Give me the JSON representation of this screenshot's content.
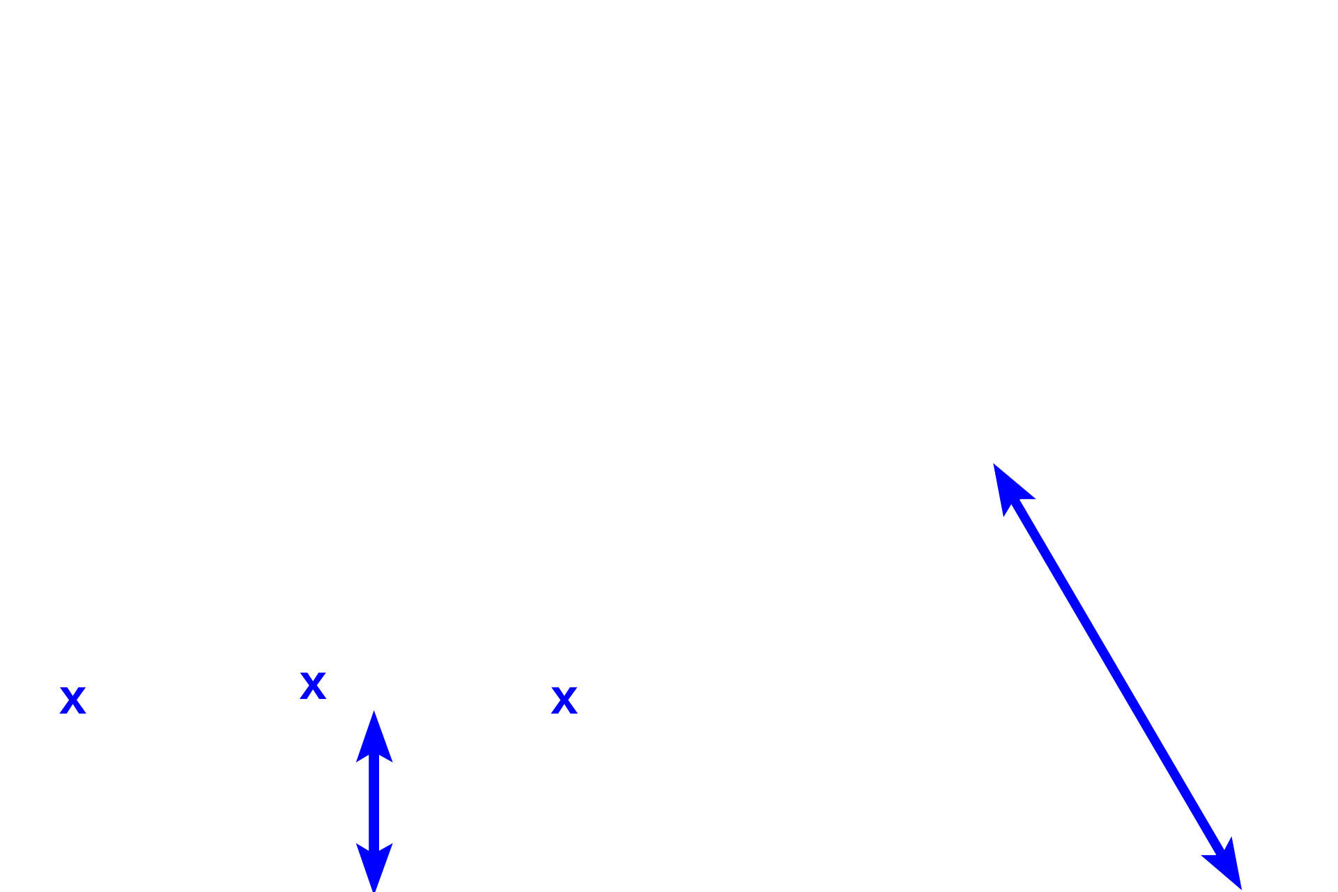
{
  "colors": {
    "ink": "#0000ff",
    "background": "#ffffff"
  },
  "labels": [
    {
      "text": "x"
    },
    {
      "text": "x"
    },
    {
      "text": "x"
    }
  ],
  "arrows": [
    {
      "kind": "double-headed",
      "orientation": "vertical"
    },
    {
      "kind": "double-headed",
      "orientation": "diagonal"
    }
  ]
}
